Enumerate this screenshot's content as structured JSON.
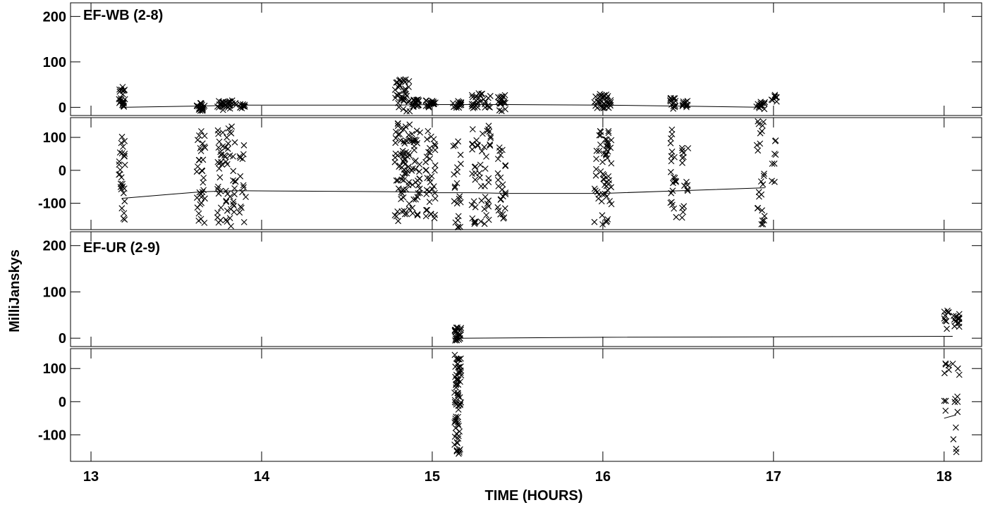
{
  "chart_data": {
    "type": "scatter",
    "xlabel": "TIME (HOURS)",
    "ylabel": "MilliJanskys",
    "xlim": [
      12.88,
      18.22
    ],
    "x_ticks": [
      "13",
      "14",
      "15",
      "16",
      "17",
      "18"
    ],
    "marker": "x",
    "ink_color": "#000000",
    "background": "#ffffff",
    "panels": [
      {
        "label": "EF-WB (2-8)",
        "subplots": [
          {
            "ylim": [
              -18,
              230
            ],
            "y_ticks": [
              "0",
              "100",
              "200"
            ],
            "model_line": {
              "x": [
                13.18,
                13.65,
                13.85,
                14.8,
                15.0,
                15.25,
                15.45,
                16.0,
                16.4,
                16.95
              ],
              "y": [
                0,
                3,
                5,
                5,
                6,
                6,
                6,
                5,
                3,
                0
              ]
            },
            "scans": [
              {
                "x": [
                  13.16,
                  13.2
                ],
                "ymin": -10,
                "ymax": 45,
                "n": 22
              },
              {
                "x": [
                  13.62,
                  13.67
                ],
                "ymin": -8,
                "ymax": 10,
                "n": 22
              },
              {
                "x": [
                  13.74,
                  13.85
                ],
                "ymin": -6,
                "ymax": 15,
                "n": 30
              },
              {
                "x": [
                  13.87,
                  13.91
                ],
                "ymin": -2,
                "ymax": 8,
                "n": 10
              },
              {
                "x": [
                  14.78,
                  14.87
                ],
                "ymin": -12,
                "ymax": 62,
                "n": 36
              },
              {
                "x": [
                  14.88,
                  14.93
                ],
                "ymin": 0,
                "ymax": 18,
                "n": 20
              },
              {
                "x": [
                  14.96,
                  15.02
                ],
                "ymin": 0,
                "ymax": 15,
                "n": 20
              },
              {
                "x": [
                  15.12,
                  15.17
                ],
                "ymin": -2,
                "ymax": 14,
                "n": 16
              },
              {
                "x": [
                  15.23,
                  15.35
                ],
                "ymin": -4,
                "ymax": 32,
                "n": 30
              },
              {
                "x": [
                  15.38,
                  15.43
                ],
                "ymin": -10,
                "ymax": 28,
                "n": 20
              },
              {
                "x": [
                  15.95,
                  16.05
                ],
                "ymin": -2,
                "ymax": 30,
                "n": 34
              },
              {
                "x": [
                  16.39,
                  16.43
                ],
                "ymin": -4,
                "ymax": 24,
                "n": 14
              },
              {
                "x": [
                  16.46,
                  16.5
                ],
                "ymin": 0,
                "ymax": 14,
                "n": 10
              },
              {
                "x": [
                  16.9,
                  16.95
                ],
                "ymin": -4,
                "ymax": 12,
                "n": 14
              },
              {
                "x": [
                  16.98,
                  17.02
                ],
                "ymin": 10,
                "ymax": 28,
                "n": 8
              }
            ]
          },
          {
            "ylim": [
              -180,
              160
            ],
            "y_ticks": [
              "100",
              "0",
              "-100"
            ],
            "model_line": {
              "x": [
                13.18,
                13.65,
                13.85,
                14.8,
                15.0,
                15.25,
                15.45,
                16.0,
                16.4,
                16.95
              ],
              "y": [
                -85,
                -65,
                -62,
                -65,
                -68,
                -68,
                -70,
                -70,
                -63,
                -53
              ]
            },
            "scans": [
              {
                "x": [
                  13.16,
                  13.2
                ],
                "ymin": -170,
                "ymax": 110,
                "n": 28
              },
              {
                "x": [
                  13.62,
                  13.67
                ],
                "ymin": -165,
                "ymax": 150,
                "n": 32
              },
              {
                "x": [
                  13.74,
                  13.85
                ],
                "ymin": -170,
                "ymax": 145,
                "n": 60
              },
              {
                "x": [
                  13.87,
                  13.91
                ],
                "ymin": -165,
                "ymax": 95,
                "n": 14
              },
              {
                "x": [
                  14.78,
                  14.87
                ],
                "ymin": -155,
                "ymax": 150,
                "n": 70
              },
              {
                "x": [
                  14.88,
                  14.93
                ],
                "ymin": -165,
                "ymax": 130,
                "n": 34
              },
              {
                "x": [
                  14.96,
                  15.02
                ],
                "ymin": -165,
                "ymax": 130,
                "n": 36
              },
              {
                "x": [
                  15.12,
                  15.17
                ],
                "ymin": -175,
                "ymax": 95,
                "n": 22
              },
              {
                "x": [
                  15.23,
                  15.35
                ],
                "ymin": -170,
                "ymax": 140,
                "n": 50
              },
              {
                "x": [
                  15.38,
                  15.43
                ],
                "ymin": -165,
                "ymax": 70,
                "n": 26
              },
              {
                "x": [
                  15.95,
                  16.05
                ],
                "ymin": -165,
                "ymax": 145,
                "n": 60
              },
              {
                "x": [
                  16.39,
                  16.43
                ],
                "ymin": -145,
                "ymax": 145,
                "n": 22
              },
              {
                "x": [
                  16.46,
                  16.5
                ],
                "ymin": -145,
                "ymax": 95,
                "n": 16
              },
              {
                "x": [
                  16.9,
                  16.95
                ],
                "ymin": -170,
                "ymax": 150,
                "n": 24
              },
              {
                "x": [
                  16.98,
                  17.02
                ],
                "ymin": -55,
                "ymax": 95,
                "n": 8
              }
            ]
          }
        ]
      },
      {
        "label": "EF-UR (2-9)",
        "subplots": [
          {
            "ylim": [
              -18,
              230
            ],
            "y_ticks": [
              "0",
              "100",
              "200"
            ],
            "model_line": {
              "x": [
                15.15,
                16.0,
                18.05
              ],
              "y": [
                0,
                2,
                4
              ]
            },
            "scans": [
              {
                "x": [
                  15.13,
                  15.17
                ],
                "ymin": -5,
                "ymax": 24,
                "n": 24
              },
              {
                "x": [
                  18.0,
                  18.03
                ],
                "ymin": 20,
                "ymax": 62,
                "n": 10
              },
              {
                "x": [
                  18.05,
                  18.09
                ],
                "ymin": 20,
                "ymax": 58,
                "n": 14
              }
            ]
          },
          {
            "ylim": [
              -180,
              160
            ],
            "y_ticks": [
              "100",
              "0",
              "-100"
            ],
            "model_line": {
              "x": [
                18.0,
                18.07
              ],
              "y": [
                -50,
                -40
              ]
            },
            "scans": [
              {
                "x": [
                  15.13,
                  15.17
                ],
                "ymin": -165,
                "ymax": 145,
                "n": 70
              },
              {
                "x": [
                  18.0,
                  18.03
                ],
                "ymin": -170,
                "ymax": 150,
                "n": 8
              },
              {
                "x": [
                  18.05,
                  18.09
                ],
                "ymin": -160,
                "ymax": 150,
                "n": 12
              }
            ]
          }
        ]
      }
    ]
  }
}
